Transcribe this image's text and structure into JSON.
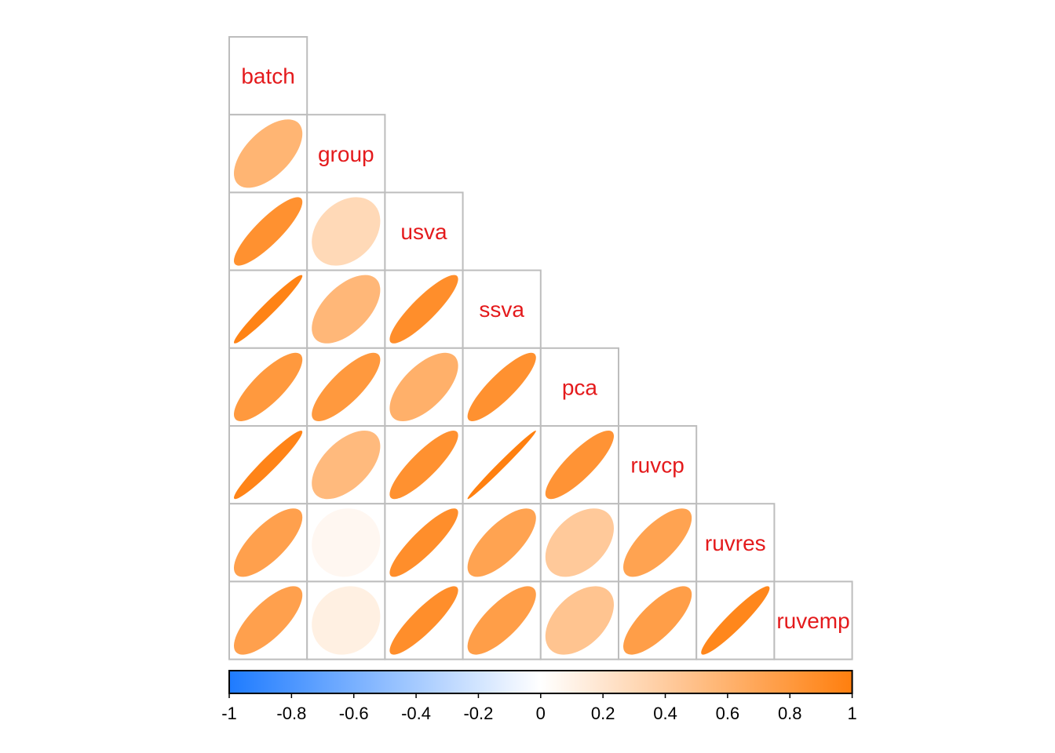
{
  "chart_data": {
    "type": "heatmap",
    "method": "ellipse",
    "layout": "lower-triangle",
    "variables": [
      "batch",
      "group",
      "usva",
      "ssva",
      "pca",
      "ruvcp",
      "ruvres",
      "ruvemp"
    ],
    "matrix": [
      [
        1.0,
        0.58,
        0.86,
        0.97,
        0.8,
        0.96,
        0.74,
        0.74
      ],
      [
        0.58,
        1.0,
        0.3,
        0.56,
        0.8,
        0.54,
        0.06,
        0.12
      ],
      [
        0.86,
        0.3,
        1.0,
        0.88,
        0.62,
        0.86,
        0.88,
        0.88
      ],
      [
        0.97,
        0.56,
        0.88,
        1.0,
        0.86,
        0.99,
        0.72,
        0.76
      ],
      [
        0.8,
        0.8,
        0.62,
        0.86,
        1.0,
        0.84,
        0.42,
        0.46
      ],
      [
        0.96,
        0.54,
        0.86,
        0.99,
        0.84,
        1.0,
        0.72,
        0.76
      ],
      [
        0.74,
        0.06,
        0.88,
        0.72,
        0.42,
        0.72,
        1.0,
        0.94
      ],
      [
        0.74,
        0.12,
        0.88,
        0.76,
        0.46,
        0.76,
        0.94,
        1.0
      ]
    ],
    "colorbar": {
      "ticks": [
        "-1",
        "-0.8",
        "-0.6",
        "-0.4",
        "-0.2",
        "0",
        "0.2",
        "0.4",
        "0.6",
        "0.8",
        "1"
      ],
      "range": [
        -1,
        1
      ],
      "colors": {
        "negative": "#1E7BFF",
        "zero": "#FFFFFF",
        "positive": "#FF7F0E"
      }
    },
    "label_color": "#E41A1C",
    "grid_color": "#BDBDBD"
  }
}
